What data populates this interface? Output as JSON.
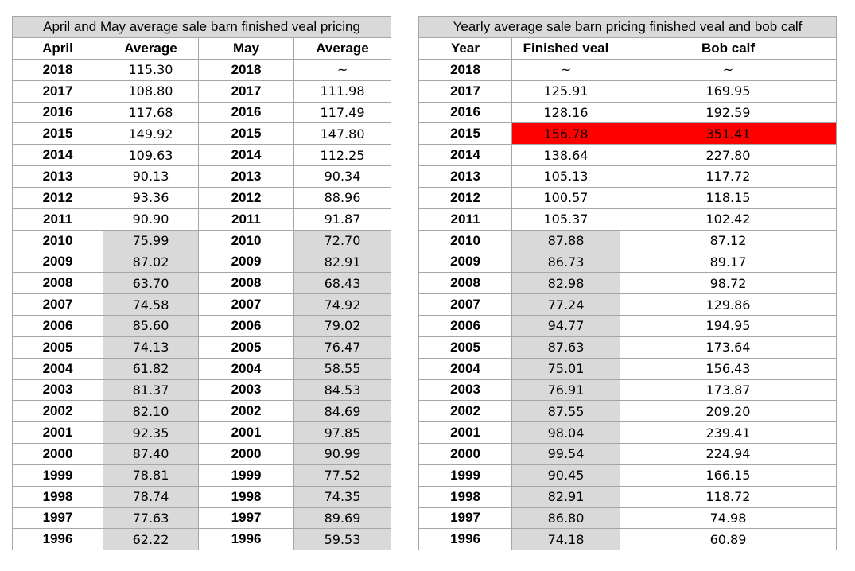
{
  "left_table": {
    "title": "April and May average sale barn finished veal pricing",
    "headers": [
      "April",
      "Average",
      "May",
      "Average"
    ],
    "rows": [
      {
        "a_year": "2018",
        "a_val": "115.30",
        "m_year": "2018",
        "m_val": "~",
        "shade": false
      },
      {
        "a_year": "2017",
        "a_val": "108.80",
        "m_year": "2017",
        "m_val": "111.98",
        "shade": false
      },
      {
        "a_year": "2016",
        "a_val": "117.68",
        "m_year": "2016",
        "m_val": "117.49",
        "shade": false
      },
      {
        "a_year": "2015",
        "a_val": "149.92",
        "m_year": "2015",
        "m_val": "147.80",
        "shade": false
      },
      {
        "a_year": "2014",
        "a_val": "109.63",
        "m_year": "2014",
        "m_val": "112.25",
        "shade": false
      },
      {
        "a_year": "2013",
        "a_val": "90.13",
        "m_year": "2013",
        "m_val": "90.34",
        "shade": false
      },
      {
        "a_year": "2012",
        "a_val": "93.36",
        "m_year": "2012",
        "m_val": "88.96",
        "shade": false
      },
      {
        "a_year": "2011",
        "a_val": "90.90",
        "m_year": "2011",
        "m_val": "91.87",
        "shade": false
      },
      {
        "a_year": "2010",
        "a_val": "75.99",
        "m_year": "2010",
        "m_val": "72.70",
        "shade": true
      },
      {
        "a_year": "2009",
        "a_val": "87.02",
        "m_year": "2009",
        "m_val": "82.91",
        "shade": true
      },
      {
        "a_year": "2008",
        "a_val": "63.70",
        "m_year": "2008",
        "m_val": "68.43",
        "shade": true
      },
      {
        "a_year": "2007",
        "a_val": "74.58",
        "m_year": "2007",
        "m_val": "74.92",
        "shade": true
      },
      {
        "a_year": "2006",
        "a_val": "85.60",
        "m_year": "2006",
        "m_val": "79.02",
        "shade": true
      },
      {
        "a_year": "2005",
        "a_val": "74.13",
        "m_year": "2005",
        "m_val": "76.47",
        "shade": true
      },
      {
        "a_year": "2004",
        "a_val": "61.82",
        "m_year": "2004",
        "m_val": "58.55",
        "shade": true
      },
      {
        "a_year": "2003",
        "a_val": "81.37",
        "m_year": "2003",
        "m_val": "84.53",
        "shade": true
      },
      {
        "a_year": "2002",
        "a_val": "82.10",
        "m_year": "2002",
        "m_val": "84.69",
        "shade": true
      },
      {
        "a_year": "2001",
        "a_val": "92.35",
        "m_year": "2001",
        "m_val": "97.85",
        "shade": true
      },
      {
        "a_year": "2000",
        "a_val": "87.40",
        "m_year": "2000",
        "m_val": "90.99",
        "shade": true
      },
      {
        "a_year": "1999",
        "a_val": "78.81",
        "m_year": "1999",
        "m_val": "77.52",
        "shade": true
      },
      {
        "a_year": "1998",
        "a_val": "78.74",
        "m_year": "1998",
        "m_val": "74.35",
        "shade": true
      },
      {
        "a_year": "1997",
        "a_val": "77.63",
        "m_year": "1997",
        "m_val": "89.69",
        "shade": true
      },
      {
        "a_year": "1996",
        "a_val": "62.22",
        "m_year": "1996",
        "m_val": "59.53",
        "shade": true
      }
    ]
  },
  "right_table": {
    "title": "Yearly average sale barn pricing finished veal and bob calf",
    "headers": [
      "Year",
      "Finished veal",
      "Bob calf"
    ],
    "highlight_color": "#ff0000",
    "shade_color": "#d9d9d9",
    "rows": [
      {
        "year": "2018",
        "veal": "~",
        "bob": "~",
        "shade": false,
        "highlight": false
      },
      {
        "year": "2017",
        "veal": "125.91",
        "bob": "169.95",
        "shade": false,
        "highlight": false
      },
      {
        "year": "2016",
        "veal": "128.16",
        "bob": "192.59",
        "shade": false,
        "highlight": false
      },
      {
        "year": "2015",
        "veal": "156.78",
        "bob": "351.41",
        "shade": false,
        "highlight": true
      },
      {
        "year": "2014",
        "veal": "138.64",
        "bob": "227.80",
        "shade": false,
        "highlight": false
      },
      {
        "year": "2013",
        "veal": "105.13",
        "bob": "117.72",
        "shade": false,
        "highlight": false
      },
      {
        "year": "2012",
        "veal": "100.57",
        "bob": "118.15",
        "shade": false,
        "highlight": false
      },
      {
        "year": "2011",
        "veal": "105.37",
        "bob": "102.42",
        "shade": false,
        "highlight": false
      },
      {
        "year": "2010",
        "veal": "87.88",
        "bob": "87.12",
        "shade": true,
        "highlight": false
      },
      {
        "year": "2009",
        "veal": "86.73",
        "bob": "89.17",
        "shade": true,
        "highlight": false
      },
      {
        "year": "2008",
        "veal": "82.98",
        "bob": "98.72",
        "shade": true,
        "highlight": false
      },
      {
        "year": "2007",
        "veal": "77.24",
        "bob": "129.86",
        "shade": true,
        "highlight": false
      },
      {
        "year": "2006",
        "veal": "94.77",
        "bob": "194.95",
        "shade": true,
        "highlight": false
      },
      {
        "year": "2005",
        "veal": "87.63",
        "bob": "173.64",
        "shade": true,
        "highlight": false
      },
      {
        "year": "2004",
        "veal": "75.01",
        "bob": "156.43",
        "shade": true,
        "highlight": false
      },
      {
        "year": "2003",
        "veal": "76.91",
        "bob": "173.87",
        "shade": true,
        "highlight": false
      },
      {
        "year": "2002",
        "veal": "87.55",
        "bob": "209.20",
        "shade": true,
        "highlight": false
      },
      {
        "year": "2001",
        "veal": "98.04",
        "bob": "239.41",
        "shade": true,
        "highlight": false
      },
      {
        "year": "2000",
        "veal": "99.54",
        "bob": "224.94",
        "shade": true,
        "highlight": false
      },
      {
        "year": "1999",
        "veal": "90.45",
        "bob": "166.15",
        "shade": true,
        "highlight": false
      },
      {
        "year": "1998",
        "veal": "82.91",
        "bob": "118.72",
        "shade": true,
        "highlight": false
      },
      {
        "year": "1997",
        "veal": "86.80",
        "bob": "74.98",
        "shade": true,
        "highlight": false
      },
      {
        "year": "1996",
        "veal": "74.18",
        "bob": "60.89",
        "shade": true,
        "highlight": false
      }
    ]
  }
}
